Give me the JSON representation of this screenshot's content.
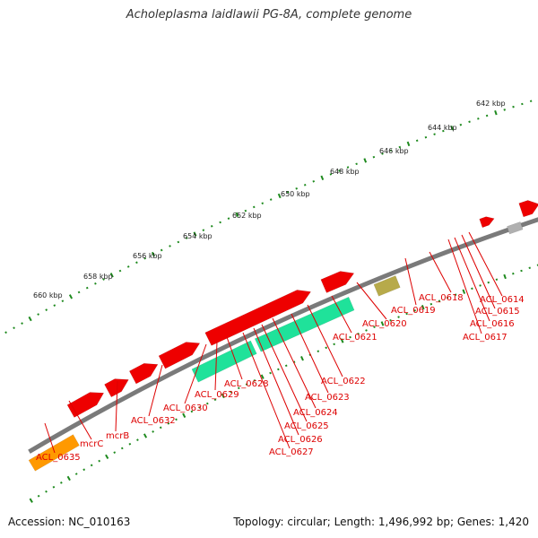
{
  "title": "Acholeplasma laidlawii PG-8A, complete genome",
  "footer": {
    "accession": "Accession: NC_010163",
    "summary": "Topology: circular; Length: 1,496,992 bp; Genes: 1,420"
  },
  "colors": {
    "backbone": "#7a7a7a",
    "forward_gene": "#ee0000",
    "rna_gene": "#1fe29a",
    "pseudo_gray": "#b0b0b0",
    "olive": "#b7aa4a",
    "orange": "#ff9900",
    "dark_gray": "#666666",
    "tick": "#1e8a1e",
    "label": "#dd0000"
  },
  "scale_labels": [
    "642 kbp",
    "644 kbp",
    "646 kbp",
    "648 kbp",
    "650 kbp",
    "652 kbp",
    "654 kbp",
    "656 kbp",
    "658 kbp",
    "660 kbp"
  ],
  "gene_labels": [
    "ACL_0614",
    "ACL_0615",
    "ACL_0616",
    "ACL_0617",
    "ACL_0618",
    "ACL_0619",
    "ACL_0620",
    "ACL_0621",
    "ACL_0622",
    "ACL_0623",
    "ACL_0624",
    "ACL_0625",
    "ACL_0626",
    "ACL_0627",
    "ACL_0628",
    "ACL_0629",
    "ACL_0630",
    "ACL_0632",
    "mcrB",
    "mcrC",
    "ACL_0635"
  ]
}
